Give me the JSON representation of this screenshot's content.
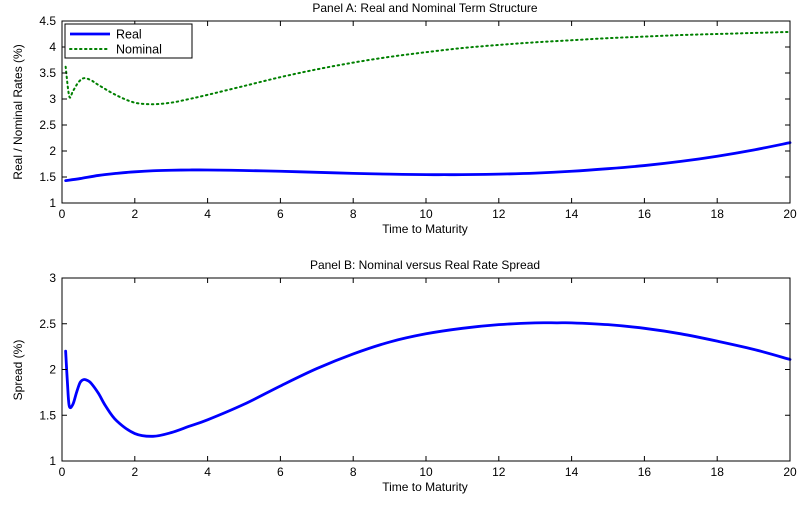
{
  "chart_data": [
    {
      "type": "line",
      "title": "Panel A: Real and Nominal Term Structure",
      "xlabel": "Time to Maturity",
      "ylabel": "Real / Nominal Rates (%)",
      "xlim": [
        0,
        20
      ],
      "ylim": [
        1,
        4.5
      ],
      "xticks": [
        0,
        2,
        4,
        6,
        8,
        10,
        12,
        14,
        16,
        18,
        20
      ],
      "yticks": [
        1,
        1.5,
        2,
        2.5,
        3,
        3.5,
        4,
        4.5
      ],
      "grid": false,
      "legend": "top-left",
      "series": [
        {
          "name": "Real",
          "color": "#0000ff",
          "style": "solid",
          "x": [
            0.1,
            0.5,
            1,
            1.5,
            2,
            2.5,
            3,
            3.5,
            4,
            5,
            6,
            7,
            8,
            9,
            10,
            10.5,
            11,
            12,
            13,
            14,
            15,
            16,
            17,
            18,
            19,
            20
          ],
          "y": [
            1.43,
            1.47,
            1.53,
            1.57,
            1.6,
            1.62,
            1.63,
            1.635,
            1.635,
            1.625,
            1.61,
            1.59,
            1.57,
            1.555,
            1.545,
            1.545,
            1.545,
            1.555,
            1.575,
            1.61,
            1.66,
            1.72,
            1.8,
            1.9,
            2.02,
            2.16
          ]
        },
        {
          "name": "Nominal",
          "color": "#008000",
          "style": "dotted",
          "x": [
            0.1,
            0.2,
            0.3,
            0.45,
            0.6,
            0.8,
            1,
            1.5,
            2,
            2.5,
            3,
            3.5,
            4,
            5,
            6,
            7,
            8,
            9,
            10,
            11,
            12,
            13,
            14,
            15,
            16,
            17,
            18,
            19,
            20
          ],
          "y": [
            3.62,
            3.05,
            3.15,
            3.32,
            3.4,
            3.36,
            3.27,
            3.07,
            2.93,
            2.9,
            2.93,
            3.0,
            3.08,
            3.25,
            3.42,
            3.57,
            3.7,
            3.81,
            3.9,
            3.98,
            4.04,
            4.09,
            4.13,
            4.17,
            4.2,
            4.23,
            4.25,
            4.27,
            4.29
          ]
        }
      ]
    },
    {
      "type": "line",
      "title": "Panel B: Nominal versus Real Rate Spread",
      "xlabel": "Time to Maturity",
      "ylabel": "Spread (%)",
      "xlim": [
        0,
        20
      ],
      "ylim": [
        1,
        3
      ],
      "xticks": [
        0,
        2,
        4,
        6,
        8,
        10,
        12,
        14,
        16,
        18,
        20
      ],
      "yticks": [
        1,
        1.5,
        2,
        2.5,
        3
      ],
      "grid": false,
      "series": [
        {
          "name": "",
          "color": "#0000ff",
          "style": "solid",
          "x": [
            0.1,
            0.15,
            0.2,
            0.3,
            0.4,
            0.5,
            0.6,
            0.7,
            0.8,
            1,
            1.2,
            1.5,
            2,
            2.5,
            3,
            3.5,
            4,
            5,
            6,
            7,
            8,
            9,
            10,
            11,
            12,
            13,
            13.6,
            14,
            15,
            16,
            17,
            18,
            19,
            20
          ],
          "y": [
            2.2,
            1.85,
            1.6,
            1.62,
            1.75,
            1.86,
            1.89,
            1.88,
            1.85,
            1.74,
            1.6,
            1.44,
            1.3,
            1.27,
            1.31,
            1.38,
            1.45,
            1.62,
            1.82,
            2.01,
            2.17,
            2.3,
            2.39,
            2.45,
            2.49,
            2.51,
            2.51,
            2.51,
            2.49,
            2.45,
            2.39,
            2.31,
            2.22,
            2.11
          ]
        }
      ]
    }
  ]
}
